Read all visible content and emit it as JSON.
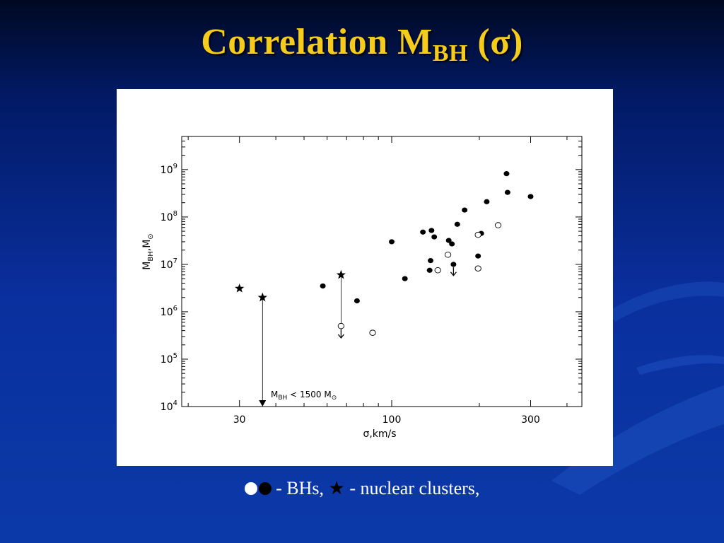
{
  "slide": {
    "title_main": "Correlation M",
    "title_sub": "BH",
    "title_tail": " (σ)"
  },
  "caption": {
    "bh_text": " - BHs, ",
    "star_glyph": "★",
    "clusters_text": " - nuclear clusters,"
  },
  "colors": {
    "title": "#f5cc1c",
    "background": "#0b2f9e"
  },
  "chart_data": {
    "type": "scatter",
    "xscale": "log",
    "yscale": "log",
    "xlim": [
      19,
      450
    ],
    "ylim": [
      10000,
      5000000000
    ],
    "xticks": [
      {
        "value": 30,
        "label": "30"
      },
      {
        "value": 100,
        "label": "100"
      },
      {
        "value": 300,
        "label": "300"
      }
    ],
    "yticks": [
      {
        "value": 10000,
        "base": "10",
        "exp": "4"
      },
      {
        "value": 100000,
        "base": "10",
        "exp": "5"
      },
      {
        "value": 1000000,
        "base": "10",
        "exp": "6"
      },
      {
        "value": 10000000,
        "base": "10",
        "exp": "7"
      },
      {
        "value": 100000000,
        "base": "10",
        "exp": "8"
      },
      {
        "value": 1000000000,
        "base": "10",
        "exp": "9"
      }
    ],
    "xlabel": "σ,km/s",
    "ylabel_main": "M",
    "ylabel_sub": "BH",
    "ylabel_sep": ",M",
    "ylabel_sun": "⊙",
    "annotation": {
      "main": "M",
      "sub": "BH",
      "mid": " < 1500 M",
      "sun": "⊙"
    },
    "series": [
      {
        "marker": "filled-circle",
        "points": [
          [
            58,
            3500000
          ],
          [
            76,
            1700000
          ],
          [
            100,
            30000000
          ],
          [
            111,
            5000000
          ],
          [
            128,
            48000000
          ],
          [
            135,
            7500000
          ],
          [
            136,
            12000000
          ],
          [
            137,
            52000000
          ],
          [
            140,
            38000000
          ],
          [
            157,
            32000000
          ],
          [
            161,
            27000000
          ],
          [
            168,
            70000000
          ],
          [
            178,
            140000000
          ],
          [
            198,
            15000000
          ],
          [
            203,
            45000000
          ],
          [
            212,
            210000000
          ],
          [
            248,
            820000000
          ],
          [
            250,
            330000000
          ],
          [
            300,
            270000000
          ]
        ]
      },
      {
        "marker": "open-circle",
        "points": [
          [
            67,
            500000
          ],
          [
            86,
            360000
          ],
          [
            144,
            7500000
          ],
          [
            156,
            16000000
          ],
          [
            198,
            42000000
          ],
          [
            198,
            8200000
          ],
          [
            232,
            67000000
          ]
        ]
      },
      {
        "marker": "star",
        "points": [
          [
            30,
            3100000
          ],
          [
            36,
            2000000
          ],
          [
            67,
            6000000
          ]
        ]
      }
    ],
    "upper_limits": [
      {
        "x": 36,
        "from": 2000000,
        "to": 10000,
        "style": "line-to-filled-arrow"
      },
      {
        "x": 67,
        "from": 6000000,
        "to": 500000,
        "style": "thin-line"
      },
      {
        "x": 67,
        "from": 500000,
        "to": 280000,
        "style": "down-arrow"
      },
      {
        "x": 163,
        "from": 10000000,
        "to": 5800000,
        "style": "down-arrow"
      }
    ],
    "filled_with_limit": [
      [
        163,
        10000000
      ]
    ]
  }
}
